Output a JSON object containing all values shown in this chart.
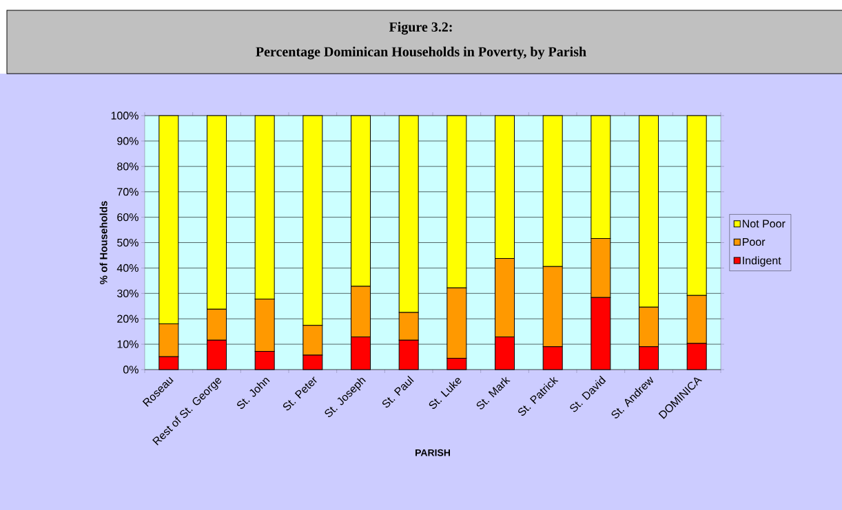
{
  "chart_data": {
    "type": "bar",
    "title": "Figure 3.2:",
    "subtitle": "Percentage Dominican Households in Poverty, by Parish",
    "xlabel": "PARISH",
    "ylabel": "% of Households",
    "categories": [
      "Roseau",
      "Rest of St. George",
      "St. John",
      "St. Peter",
      "St. Joseph",
      "St. Paul",
      "St. Luke",
      "St. Mark",
      "St. Patrick",
      "St. David",
      "St. Andrew",
      "DOMINICA"
    ],
    "series": [
      {
        "name": "Indigent",
        "color": "#ff0000",
        "values": [
          5.1,
          11.6,
          7.2,
          5.7,
          12.9,
          11.6,
          4.5,
          12.9,
          9.0,
          28.4,
          9.0,
          10.3
        ]
      },
      {
        "name": "Poor",
        "color": "#ff9900",
        "values": [
          12.9,
          12.2,
          20.6,
          11.7,
          19.9,
          10.9,
          27.7,
          30.9,
          31.6,
          23.2,
          15.6,
          18.9
        ]
      },
      {
        "name": "Not Poor",
        "color": "#ffff00",
        "values": [
          82.0,
          76.2,
          72.2,
          82.6,
          67.2,
          77.5,
          67.8,
          56.2,
          59.4,
          48.4,
          75.4,
          70.8
        ]
      }
    ],
    "stacked": true,
    "ylim": [
      0,
      100
    ],
    "yticks": [
      {
        "value": 0,
        "label": "0%"
      },
      {
        "value": 10,
        "label": "10%"
      },
      {
        "value": 20,
        "label": "20%"
      },
      {
        "value": 30,
        "label": "30%"
      },
      {
        "value": 40,
        "label": "40%"
      },
      {
        "value": 50,
        "label": "50%"
      },
      {
        "value": 60,
        "label": "60%"
      },
      {
        "value": 70,
        "label": "70%"
      },
      {
        "value": 80,
        "label": "80%"
      },
      {
        "value": 90,
        "label": "90%"
      },
      {
        "value": 100,
        "label": "100%"
      }
    ],
    "grid": "y",
    "legend": "right"
  }
}
